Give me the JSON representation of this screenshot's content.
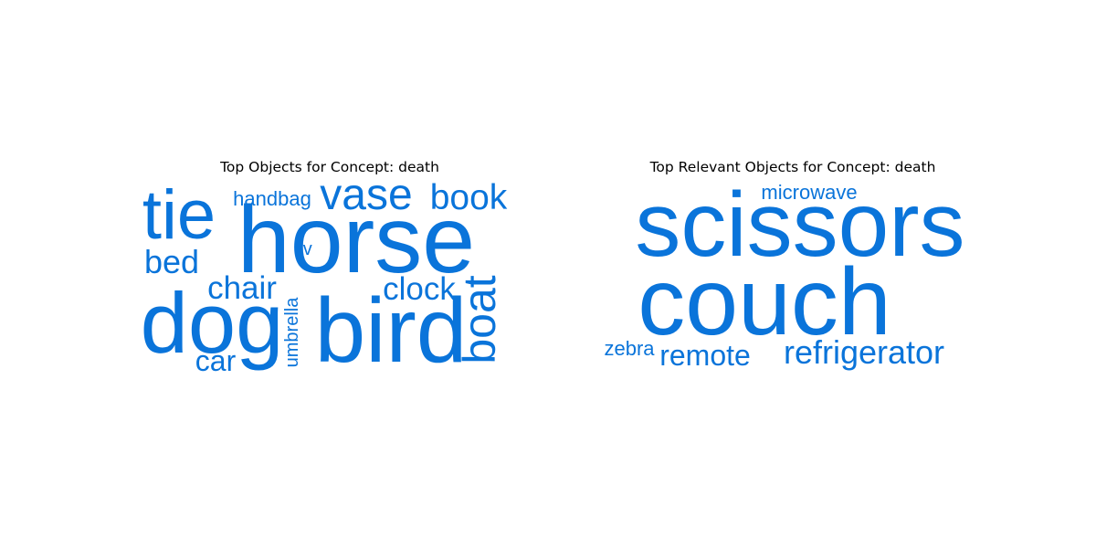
{
  "colors": {
    "word": "#0a74da",
    "title": "#000000",
    "background": "#ffffff"
  },
  "chart_data": [
    {
      "type": "wordcloud",
      "title": "Top Objects for Concept: death",
      "words": [
        {
          "text": "horse",
          "weight": 1.0
        },
        {
          "text": "bird",
          "weight": 0.93
        },
        {
          "text": "dog",
          "weight": 0.82
        },
        {
          "text": "tie",
          "weight": 0.62
        },
        {
          "text": "vase",
          "weight": 0.42
        },
        {
          "text": "boat",
          "weight": 0.4
        },
        {
          "text": "book",
          "weight": 0.36
        },
        {
          "text": "clock",
          "weight": 0.33
        },
        {
          "text": "chair",
          "weight": 0.33
        },
        {
          "text": "bed",
          "weight": 0.32
        },
        {
          "text": "car",
          "weight": 0.3
        },
        {
          "text": "handbag",
          "weight": 0.22
        },
        {
          "text": "umbrella",
          "weight": 0.2
        },
        {
          "text": "tv",
          "weight": 0.19
        }
      ]
    },
    {
      "type": "wordcloud",
      "title": "Top Relevant Objects for Concept: death",
      "words": [
        {
          "text": "scissors",
          "weight": 1.0
        },
        {
          "text": "couch",
          "weight": 1.0
        },
        {
          "text": "refrigerator",
          "weight": 0.44
        },
        {
          "text": "remote",
          "weight": 0.4
        },
        {
          "text": "microwave",
          "weight": 0.26
        },
        {
          "text": "zebra",
          "weight": 0.25
        }
      ]
    }
  ]
}
